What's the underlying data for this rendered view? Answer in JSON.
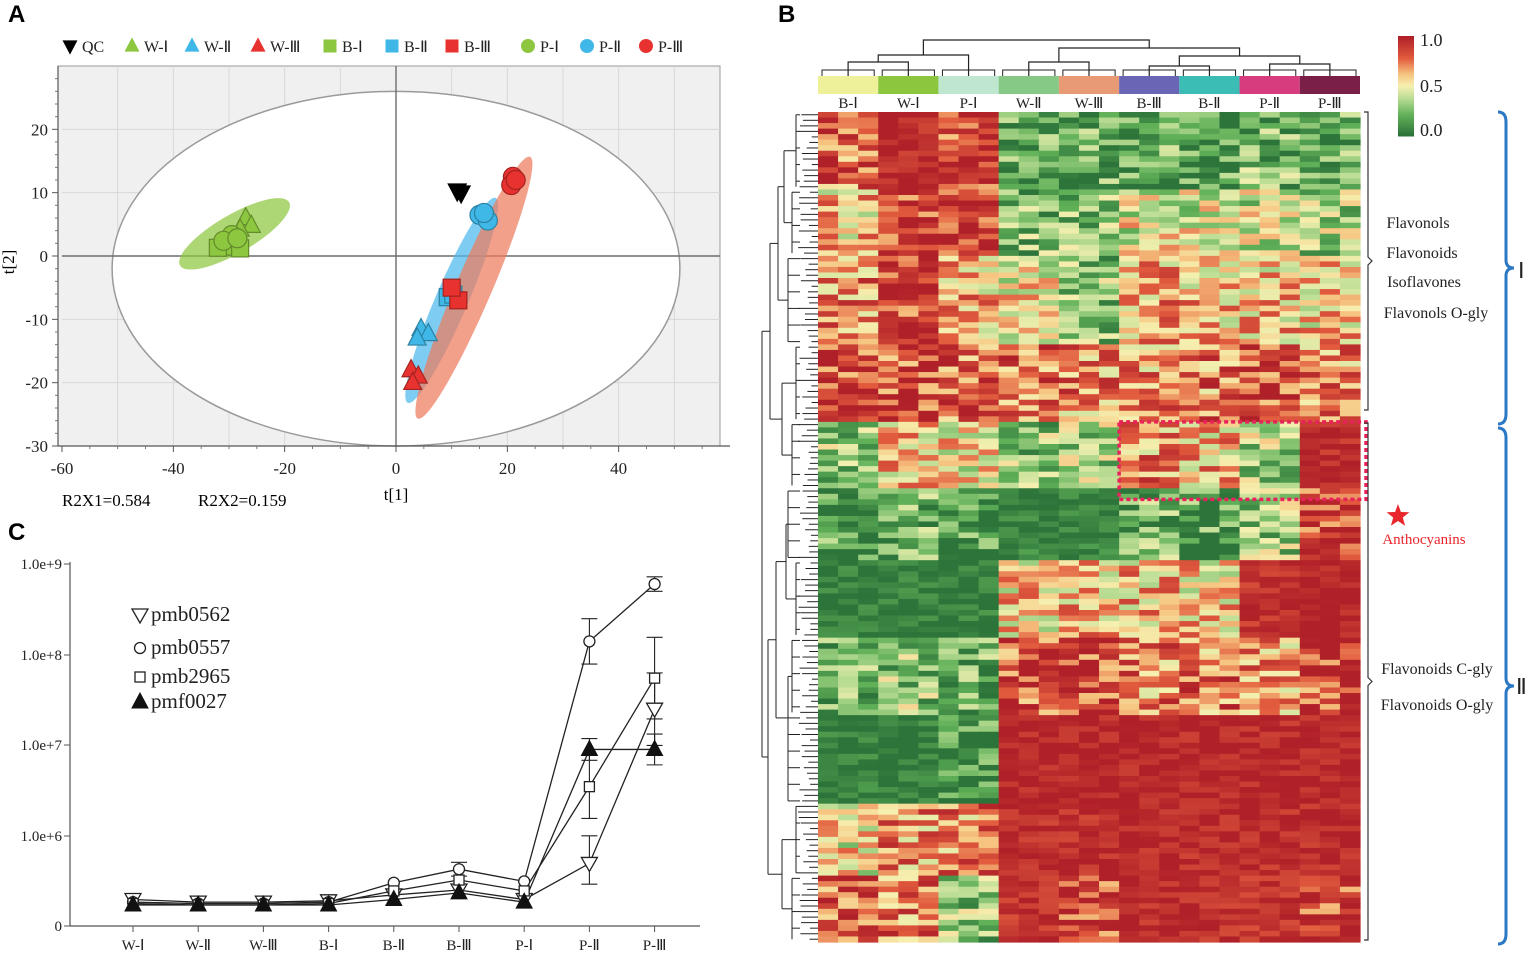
{
  "panels": {
    "a": "A",
    "b": "B",
    "c": "C"
  },
  "colors": {
    "qc": "#000000",
    "wGreen": "#8dc63f",
    "cyan": "#3fb8e8",
    "red": "#e8322f",
    "greenEllipse": "#8dc63f",
    "blueEllipse": "#4cb8ec",
    "redEllipse": "#ef7b5e",
    "heatLow": "#2e7d3c",
    "heatMid": "#f8f3b3",
    "heatHigh": "#b2232a",
    "clusterBrace": "#2b78c5",
    "anthocyanin": "#e8225a"
  },
  "chart_data": [
    {
      "id": "pca",
      "type": "scatter",
      "title": "",
      "xlabel": "t[1]",
      "ylabel": "t[2]",
      "xlim": [
        -60,
        60
      ],
      "ylim": [
        -30,
        30
      ],
      "xticks": [
        -60,
        -40,
        -20,
        0,
        20,
        40
      ],
      "yticks": [
        -30,
        -20,
        -10,
        0,
        10,
        20
      ],
      "grid": true,
      "stats": [
        "R2X1=0.584",
        "R2X2=0.159"
      ],
      "legend": [
        {
          "label": "QC",
          "marker": "tri-down",
          "color": "#000000"
        },
        {
          "label": "W-Ⅰ",
          "marker": "tri-up",
          "color": "#8dc63f"
        },
        {
          "label": "W-Ⅱ",
          "marker": "tri-up",
          "color": "#3fb8e8"
        },
        {
          "label": "W-Ⅲ",
          "marker": "tri-up",
          "color": "#e8322f"
        },
        {
          "label": "B-Ⅰ",
          "marker": "square",
          "color": "#8dc63f"
        },
        {
          "label": "B-Ⅱ",
          "marker": "square",
          "color": "#3fb8e8"
        },
        {
          "label": "B-Ⅲ",
          "marker": "square",
          "color": "#e8322f"
        },
        {
          "label": "P-Ⅰ",
          "marker": "circle",
          "color": "#8dc63f"
        },
        {
          "label": "P-Ⅱ",
          "marker": "circle",
          "color": "#3fb8e8"
        },
        {
          "label": "P-Ⅲ",
          "marker": "circle",
          "color": "#e8322f"
        }
      ],
      "confidence_ellipse": {
        "cx": 0,
        "cy": -2,
        "rx": 51,
        "ry": 28
      },
      "group_ellipses": [
        {
          "group": "Ⅰ",
          "color": "#8dc63f",
          "cx": -29,
          "cy": 3.5,
          "rx": 11,
          "ry": 3.2,
          "angle_deg": 27
        },
        {
          "group": "Ⅱ",
          "color": "#4cb8ec",
          "cx": 10,
          "cy": -7,
          "rx": 18,
          "ry": 2.7,
          "angle_deg": 64
        },
        {
          "group": "Ⅲ",
          "color": "#ef7b5e",
          "cx": 14,
          "cy": -5,
          "rx": 23,
          "ry": 3,
          "angle_deg": 64
        }
      ],
      "points": [
        {
          "g": "QC",
          "m": "tri-down",
          "c": "#000000",
          "x": 11,
          "y": 10.3
        },
        {
          "g": "QC",
          "m": "tri-down",
          "c": "#000000",
          "x": 11.7,
          "y": 10
        },
        {
          "g": "W-Ⅰ",
          "m": "tri-up",
          "c": "#8dc63f",
          "x": -27,
          "y": 6
        },
        {
          "g": "W-Ⅰ",
          "m": "tri-up",
          "c": "#8dc63f",
          "x": -26,
          "y": 4.8
        },
        {
          "g": "W-Ⅰ",
          "m": "tri-up",
          "c": "#8dc63f",
          "x": -28,
          "y": 4.2
        },
        {
          "g": "W-Ⅱ",
          "m": "tri-up",
          "c": "#3fb8e8",
          "x": 4.5,
          "y": -11.5
        },
        {
          "g": "W-Ⅱ",
          "m": "tri-up",
          "c": "#3fb8e8",
          "x": 5.8,
          "y": -12.3
        },
        {
          "g": "W-Ⅱ",
          "m": "tri-up",
          "c": "#3fb8e8",
          "x": 3.8,
          "y": -13
        },
        {
          "g": "W-Ⅲ",
          "m": "tri-up",
          "c": "#e8322f",
          "x": 2.7,
          "y": -18
        },
        {
          "g": "W-Ⅲ",
          "m": "tri-up",
          "c": "#e8322f",
          "x": 4,
          "y": -19
        },
        {
          "g": "W-Ⅲ",
          "m": "tri-up",
          "c": "#e8322f",
          "x": 3,
          "y": -20
        },
        {
          "g": "B-Ⅰ",
          "m": "square",
          "c": "#8dc63f",
          "x": -30,
          "y": 1.5
        },
        {
          "g": "B-Ⅰ",
          "m": "square",
          "c": "#8dc63f",
          "x": -28,
          "y": 1.2
        },
        {
          "g": "B-Ⅰ",
          "m": "square",
          "c": "#8dc63f",
          "x": -32,
          "y": 1.3
        },
        {
          "g": "B-Ⅱ",
          "m": "square",
          "c": "#3fb8e8",
          "x": 9.3,
          "y": -6.5
        },
        {
          "g": "B-Ⅱ",
          "m": "square",
          "c": "#3fb8e8",
          "x": 10.3,
          "y": -6.1
        },
        {
          "g": "B-Ⅲ",
          "m": "square",
          "c": "#e8322f",
          "x": 11.2,
          "y": -7
        },
        {
          "g": "B-Ⅲ",
          "m": "square",
          "c": "#e8322f",
          "x": 10,
          "y": -5
        },
        {
          "g": "P-Ⅰ",
          "m": "circle",
          "c": "#8dc63f",
          "x": -29.5,
          "y": 3.3
        },
        {
          "g": "P-Ⅰ",
          "m": "circle",
          "c": "#8dc63f",
          "x": -31,
          "y": 2.4
        },
        {
          "g": "P-Ⅰ",
          "m": "circle",
          "c": "#8dc63f",
          "x": -28.5,
          "y": 2.8
        },
        {
          "g": "P-Ⅱ",
          "m": "circle",
          "c": "#3fb8e8",
          "x": 15,
          "y": 6.5
        },
        {
          "g": "P-Ⅱ",
          "m": "circle",
          "c": "#3fb8e8",
          "x": 16.5,
          "y": 5.6
        },
        {
          "g": "P-Ⅱ",
          "m": "circle",
          "c": "#3fb8e8",
          "x": 15.8,
          "y": 6.8
        },
        {
          "g": "P-Ⅲ",
          "m": "circle",
          "c": "#e8322f",
          "x": 21,
          "y": 12.5
        },
        {
          "g": "P-Ⅲ",
          "m": "circle",
          "c": "#e8322f",
          "x": 20.7,
          "y": 11.2
        },
        {
          "g": "P-Ⅲ",
          "m": "circle",
          "c": "#e8322f",
          "x": 21.5,
          "y": 12
        }
      ]
    },
    {
      "id": "heatmap",
      "type": "heatmap",
      "title": "",
      "columns": [
        "B-Ⅰ",
        "W-Ⅰ",
        "P-Ⅰ",
        "W-Ⅱ",
        "W-Ⅲ",
        "B-Ⅲ",
        "B-Ⅱ",
        "P-Ⅱ",
        "P-Ⅲ"
      ],
      "column_colors": [
        "#eef09a",
        "#8cc63f",
        "#bfe6cf",
        "#86c986",
        "#e89a74",
        "#6a66b5",
        "#3bbdb6",
        "#d63c7e",
        "#7a1f48"
      ],
      "replicates_per_column": 3,
      "rows": 150,
      "scale": {
        "min": 0.0,
        "max": 1.0,
        "ticks": [
          {
            "v": 1.0,
            "label": "1.0"
          },
          {
            "v": 0.5,
            "label": "0.5"
          },
          {
            "v": 0.0,
            "label": "0.0"
          }
        ]
      },
      "block_profile": [
        {
          "rows": 14,
          "cols": [
            0.78,
            0.96,
            0.88,
            0.14,
            0.16,
            0.18,
            0.12,
            0.22,
            0.2
          ]
        },
        {
          "rows": 12,
          "cols": [
            0.6,
            0.86,
            0.84,
            0.25,
            0.3,
            0.46,
            0.44,
            0.42,
            0.34
          ]
        },
        {
          "rows": 16,
          "cols": [
            0.72,
            0.9,
            0.62,
            0.5,
            0.28,
            0.66,
            0.62,
            0.6,
            0.58
          ]
        },
        {
          "rows": 14,
          "cols": [
            0.88,
            0.84,
            0.8,
            0.78,
            0.7,
            0.68,
            0.74,
            0.86,
            0.72
          ]
        },
        {
          "rows": 12,
          "cols": [
            0.32,
            0.58,
            0.5,
            0.3,
            0.34,
            0.7,
            0.62,
            0.35,
            0.96
          ]
        },
        {
          "rows": 13,
          "cols": [
            0.12,
            0.2,
            0.1,
            0.06,
            0.05,
            0.2,
            0.15,
            0.3,
            0.9
          ]
        },
        {
          "rows": 14,
          "cols": [
            0.03,
            0.03,
            0.03,
            0.56,
            0.6,
            0.6,
            0.58,
            0.92,
            1.0
          ]
        },
        {
          "rows": 14,
          "cols": [
            0.2,
            0.3,
            0.18,
            0.82,
            0.86,
            0.72,
            0.74,
            0.68,
            0.86
          ]
        },
        {
          "rows": 16,
          "cols": [
            0.04,
            0.04,
            0.08,
            0.98,
            0.98,
            0.98,
            0.98,
            0.97,
            0.98
          ]
        },
        {
          "rows": 13,
          "cols": [
            0.5,
            0.68,
            0.72,
            0.95,
            0.94,
            0.97,
            0.96,
            0.95,
            0.95
          ]
        },
        {
          "rows": 12,
          "cols": [
            0.8,
            0.74,
            0.28,
            0.92,
            0.9,
            0.96,
            0.94,
            0.92,
            0.9
          ]
        }
      ],
      "cluster_annotations": [
        {
          "cluster": "Ⅰ",
          "labels": [
            "Flavonols",
            "Flavonoids",
            "Isoflavones",
            "Flavonols O-gly"
          ]
        },
        {
          "cluster": "Ⅱ",
          "labels": [
            "Flavonoids C-gly",
            "Flavonoids O-gly"
          ]
        }
      ],
      "highlight": {
        "label": "Anthocyanins",
        "columns": [
          "B-Ⅲ",
          "B-Ⅱ",
          "P-Ⅱ",
          "P-Ⅲ"
        ],
        "row_start": 56,
        "row_end": 70
      }
    },
    {
      "id": "abundance",
      "type": "line",
      "title": "",
      "xlabel": "",
      "ylabel": "",
      "categories": [
        "W-Ⅰ",
        "W-Ⅱ",
        "W-Ⅲ",
        "B-Ⅰ",
        "B-Ⅱ",
        "B-Ⅲ",
        "P-Ⅰ",
        "P-Ⅱ",
        "P-Ⅲ"
      ],
      "y_ticks": [
        "0",
        "1.0e+6",
        "1.0e+7",
        "1.0e+8",
        "1.0e+9"
      ],
      "y_scale": "log (0 at baseline, 1.0e+6 to 1.0e+9 by decade)",
      "series": [
        {
          "name": "pmb0562",
          "marker": "tri-down-open",
          "values": [
            120000,
            110000,
            110000,
            115000,
            140000,
            165000,
            120000,
            400000,
            25000000
          ],
          "errors": [
            [
              0,
              0
            ],
            [
              0,
              0
            ],
            [
              0,
              0
            ],
            [
              0,
              0
            ],
            [
              0,
              0
            ],
            [
              0,
              0
            ],
            [
              0,
              0
            ],
            [
              0.3,
              0.4
            ],
            [
              0.4,
              0.4
            ]
          ]
        },
        {
          "name": "pmb0557",
          "marker": "circle-open",
          "values": [
            110000,
            105000,
            105000,
            110000,
            210000,
            330000,
            220000,
            140000000,
            600000000
          ],
          "errors": [
            [
              0,
              0
            ],
            [
              0,
              0
            ],
            [
              0,
              0
            ],
            [
              0,
              0
            ],
            [
              0,
              0
            ],
            [
              0.1,
              0.1
            ],
            [
              0,
              0
            ],
            [
              0.25,
              0.25
            ],
            [
              0.08,
              0.08
            ]
          ]
        },
        {
          "name": "pmb2965",
          "marker": "square-open",
          "values": [
            105000,
            100000,
            100000,
            105000,
            160000,
            230000,
            160000,
            3500000,
            55000000
          ],
          "errors": [
            [
              0,
              0
            ],
            [
              0,
              0
            ],
            [
              0,
              0
            ],
            [
              0,
              0
            ],
            [
              0,
              0
            ],
            [
              0,
              0
            ],
            [
              0,
              0
            ],
            [
              0.35,
              0.35
            ],
            [
              0.45,
              0.45
            ]
          ]
        },
        {
          "name": "pmf0027",
          "marker": "tri-up-filled",
          "values": [
            100000,
            100000,
            100000,
            100000,
            120000,
            150000,
            110000,
            9000000,
            9000000
          ],
          "errors": [
            [
              0,
              0
            ],
            [
              0,
              0
            ],
            [
              0,
              0
            ],
            [
              0,
              0
            ],
            [
              0,
              0
            ],
            [
              0,
              0
            ],
            [
              0,
              0
            ],
            [
              0.12,
              0.12
            ],
            [
              0.17,
              0.17
            ]
          ]
        }
      ]
    }
  ]
}
